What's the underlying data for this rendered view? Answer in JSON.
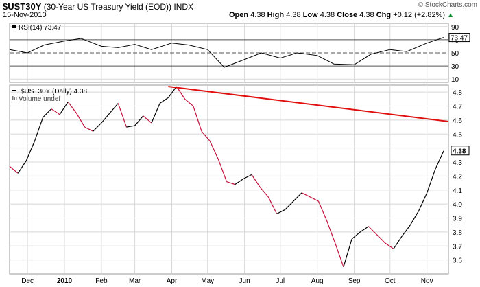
{
  "header": {
    "symbol": "$UST30Y",
    "name": "(30-Year US Treasury Yield (EOD))",
    "exchange": "INDX",
    "date": "15-Nov-2010",
    "brand": "© StockCharts.com",
    "open_label": "Open",
    "open": "4.38",
    "high_label": "High",
    "high": "4.38",
    "low_label": "Low",
    "low": "4.38",
    "close_label": "Close",
    "close": "4.38",
    "chg_label": "Chg",
    "chg": "+0.12 (+2.82%)",
    "arrow_icon": "up-arrow-icon"
  },
  "colors": {
    "price_up": "#000000",
    "price_down": "#c0103c",
    "trendline": "#e01010",
    "grid": "#d8d8d8",
    "rsi_line": "#000000"
  },
  "chart_data": [
    {
      "type": "line",
      "panel": "rsi",
      "label": "RSI(14) 73.47",
      "ylim": [
        5,
        95
      ],
      "yticks": [
        90,
        70,
        50,
        30,
        10
      ],
      "reference_lines": [
        70,
        50,
        30
      ],
      "last_value_badge": "73.47",
      "x": [
        "2009-11-16",
        "2009-12-01",
        "2009-12-15",
        "2010-01-01",
        "2010-01-15",
        "2010-02-01",
        "2010-02-15",
        "2010-03-01",
        "2010-03-15",
        "2010-04-01",
        "2010-04-15",
        "2010-05-01",
        "2010-05-15",
        "2010-06-01",
        "2010-06-15",
        "2010-07-01",
        "2010-07-15",
        "2010-08-01",
        "2010-08-15",
        "2010-09-01",
        "2010-09-15",
        "2010-10-01",
        "2010-10-15",
        "2010-11-01",
        "2010-11-15"
      ],
      "values": [
        55,
        50,
        62,
        68,
        72,
        60,
        58,
        63,
        55,
        65,
        62,
        55,
        28,
        40,
        50,
        42,
        50,
        46,
        33,
        32,
        48,
        55,
        52,
        65,
        73.47
      ]
    },
    {
      "type": "line",
      "panel": "price",
      "label": "$UST30Y (Daily) 4.38",
      "volume_label": "Volume undef",
      "ylim": [
        3.5,
        4.85
      ],
      "yticks": [
        4.8,
        4.7,
        4.6,
        4.5,
        4.4,
        4.3,
        4.2,
        4.1,
        4.0,
        3.9,
        3.8,
        3.7,
        3.6
      ],
      "x_tick_labels": [
        "Dec",
        "2010",
        "Feb",
        "Mar",
        "Apr",
        "May",
        "Jun",
        "Jul",
        "Aug",
        "Sep",
        "Oct",
        "Nov"
      ],
      "x_tick_dates": [
        "2009-12-01",
        "2010-01-01",
        "2010-02-01",
        "2010-03-01",
        "2010-04-01",
        "2010-05-01",
        "2010-06-01",
        "2010-07-01",
        "2010-08-01",
        "2010-09-01",
        "2010-10-01",
        "2010-11-01"
      ],
      "x_range": [
        "2009-11-16",
        "2010-11-19"
      ],
      "last_value_badge": "4.38",
      "x": [
        "2009-11-16",
        "2009-11-23",
        "2009-11-30",
        "2009-12-07",
        "2009-12-14",
        "2009-12-21",
        "2009-12-28",
        "2010-01-04",
        "2010-01-11",
        "2010-01-18",
        "2010-01-25",
        "2010-02-01",
        "2010-02-08",
        "2010-02-15",
        "2010-02-22",
        "2010-03-01",
        "2010-03-08",
        "2010-03-15",
        "2010-03-22",
        "2010-03-29",
        "2010-04-05",
        "2010-04-12",
        "2010-04-19",
        "2010-04-26",
        "2010-05-03",
        "2010-05-10",
        "2010-05-17",
        "2010-05-24",
        "2010-05-31",
        "2010-06-07",
        "2010-06-14",
        "2010-06-21",
        "2010-06-28",
        "2010-07-05",
        "2010-07-12",
        "2010-07-19",
        "2010-07-26",
        "2010-08-02",
        "2010-08-09",
        "2010-08-16",
        "2010-08-23",
        "2010-08-30",
        "2010-09-06",
        "2010-09-13",
        "2010-09-20",
        "2010-09-27",
        "2010-10-04",
        "2010-10-11",
        "2010-10-18",
        "2010-10-25",
        "2010-11-01",
        "2010-11-08",
        "2010-11-15"
      ],
      "values": [
        4.27,
        4.22,
        4.31,
        4.45,
        4.62,
        4.68,
        4.64,
        4.73,
        4.65,
        4.55,
        4.52,
        4.58,
        4.65,
        4.72,
        4.55,
        4.56,
        4.63,
        4.58,
        4.72,
        4.76,
        4.84,
        4.75,
        4.7,
        4.52,
        4.45,
        4.32,
        4.16,
        4.14,
        4.18,
        4.21,
        4.12,
        4.05,
        3.93,
        3.96,
        4.02,
        4.08,
        4.05,
        4.02,
        3.88,
        3.72,
        3.55,
        3.75,
        3.8,
        3.84,
        3.78,
        3.72,
        3.68,
        3.77,
        3.85,
        3.95,
        4.08,
        4.25,
        4.38
      ],
      "trendline": {
        "x": [
          "2010-03-29",
          "2010-11-19"
        ],
        "y": [
          4.84,
          4.59
        ]
      }
    }
  ]
}
